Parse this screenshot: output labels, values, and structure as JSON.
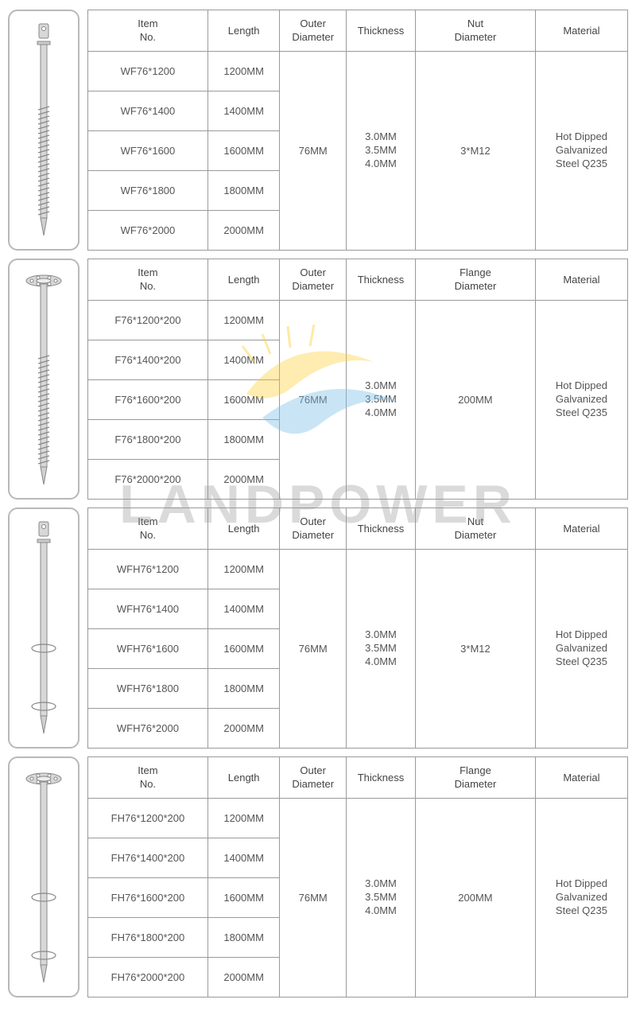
{
  "watermark_text": "LANDPOWER",
  "sections": [
    {
      "screw_type": "threaded-nut",
      "headers": [
        "Item No.",
        "Length",
        "Outer Diameter",
        "Thickness",
        "Nut Diameter",
        "Material"
      ],
      "rows": [
        {
          "item": "WF76*1200",
          "length": "1200MM"
        },
        {
          "item": "WF76*1400",
          "length": "1400MM"
        },
        {
          "item": "WF76*1600",
          "length": "1600MM"
        },
        {
          "item": "WF76*1800",
          "length": "1800MM"
        },
        {
          "item": "WF76*2000",
          "length": "2000MM"
        }
      ],
      "outer_diameter": "76MM",
      "thickness": "3.0MM\n3.5MM\n4.0MM",
      "extra": "3*M12",
      "material": "Hot Dipped Galvanized Steel Q235"
    },
    {
      "screw_type": "threaded-flange",
      "headers": [
        "Item No.",
        "Length",
        "Outer Diameter",
        "Thickness",
        "Flange Diameter",
        "Material"
      ],
      "rows": [
        {
          "item": "F76*1200*200",
          "length": "1200MM"
        },
        {
          "item": "F76*1400*200",
          "length": "1400MM"
        },
        {
          "item": "F76*1600*200",
          "length": "1600MM"
        },
        {
          "item": "F76*1800*200",
          "length": "1800MM"
        },
        {
          "item": "F76*2000*200",
          "length": "2000MM"
        }
      ],
      "outer_diameter": "76MM",
      "thickness": "3.0MM\n3.5MM\n4.0MM",
      "extra": "200MM",
      "material": "Hot Dipped Galvanized Steel Q235"
    },
    {
      "screw_type": "helix-nut",
      "headers": [
        "Item No.",
        "Length",
        "Outer Diameter",
        "Thickness",
        "Nut Diameter",
        "Material"
      ],
      "rows": [
        {
          "item": "WFH76*1200",
          "length": "1200MM"
        },
        {
          "item": "WFH76*1400",
          "length": "1400MM"
        },
        {
          "item": "WFH76*1600",
          "length": "1600MM"
        },
        {
          "item": "WFH76*1800",
          "length": "1800MM"
        },
        {
          "item": "WFH76*2000",
          "length": "2000MM"
        }
      ],
      "outer_diameter": "76MM",
      "thickness": "3.0MM\n3.5MM\n4.0MM",
      "extra": "3*M12",
      "material": "Hot Dipped Galvanized Steel Q235"
    },
    {
      "screw_type": "helix-flange",
      "headers": [
        "Item No.",
        "Length",
        "Outer Diameter",
        "Thickness",
        "Flange Diameter",
        "Material"
      ],
      "rows": [
        {
          "item": "FH76*1200*200",
          "length": "1200MM"
        },
        {
          "item": "FH76*1400*200",
          "length": "1400MM"
        },
        {
          "item": "FH76*1600*200",
          "length": "1600MM"
        },
        {
          "item": "FH76*1800*200",
          "length": "1800MM"
        },
        {
          "item": "FH76*2000*200",
          "length": "2000MM"
        }
      ],
      "outer_diameter": "76MM",
      "thickness": "3.0MM\n3.5MM\n4.0MM",
      "extra": "200MM",
      "material": "Hot Dipped Galvanized Steel Q235"
    }
  ],
  "colors": {
    "border": "#9a9a9a",
    "img_border": "#b8b8b8",
    "text": "#555555",
    "screw_fill": "#c8c8c8",
    "screw_stroke": "#888888"
  }
}
